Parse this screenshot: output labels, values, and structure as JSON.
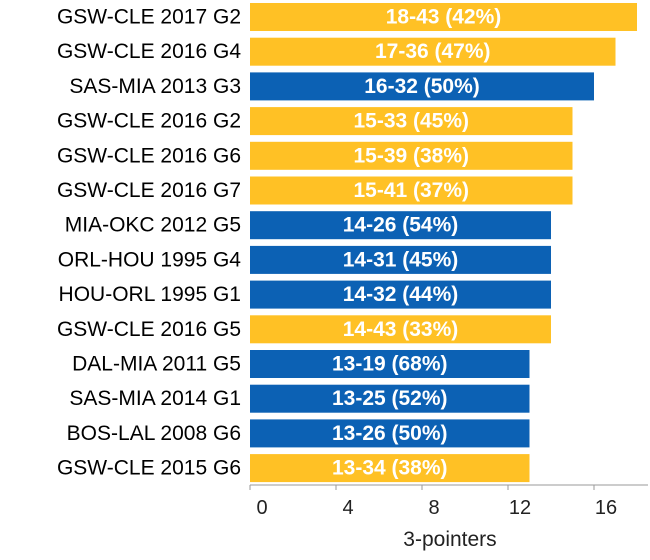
{
  "chart_data": {
    "type": "bar",
    "orientation": "horizontal",
    "xlabel": "3-pointers",
    "xlim": [
      0,
      18
    ],
    "xticks": [
      0,
      4,
      8,
      12,
      16
    ],
    "grid": false,
    "colors": {
      "gold": "#FFC125",
      "blue": "#0C61B4"
    },
    "bars": [
      {
        "category": "GSW-CLE 2017 G2",
        "value": 18,
        "label": "18-43 (42%)",
        "color": "gold"
      },
      {
        "category": "GSW-CLE 2016 G4",
        "value": 17,
        "label": "17-36 (47%)",
        "color": "gold"
      },
      {
        "category": "SAS-MIA 2013 G3",
        "value": 16,
        "label": "16-32 (50%)",
        "color": "blue"
      },
      {
        "category": "GSW-CLE 2016 G2",
        "value": 15,
        "label": "15-33 (45%)",
        "color": "gold"
      },
      {
        "category": "GSW-CLE 2016 G6",
        "value": 15,
        "label": "15-39 (38%)",
        "color": "gold"
      },
      {
        "category": "GSW-CLE 2016 G7",
        "value": 15,
        "label": "15-41 (37%)",
        "color": "gold"
      },
      {
        "category": "MIA-OKC 2012 G5",
        "value": 14,
        "label": "14-26 (54%)",
        "color": "blue"
      },
      {
        "category": "ORL-HOU 1995 G4",
        "value": 14,
        "label": "14-31 (45%)",
        "color": "blue"
      },
      {
        "category": "HOU-ORL 1995 G1",
        "value": 14,
        "label": "14-32 (44%)",
        "color": "blue"
      },
      {
        "category": "GSW-CLE 2016 G5",
        "value": 14,
        "label": "14-43 (33%)",
        "color": "gold"
      },
      {
        "category": "DAL-MIA 2011 G5",
        "value": 13,
        "label": "13-19 (68%)",
        "color": "blue"
      },
      {
        "category": "SAS-MIA 2014 G1",
        "value": 13,
        "label": "13-25 (52%)",
        "color": "blue"
      },
      {
        "category": "BOS-LAL 2008 G6",
        "value": 13,
        "label": "13-26 (50%)",
        "color": "blue"
      },
      {
        "category": "GSW-CLE 2015 G6",
        "value": 13,
        "label": "13-34 (38%)",
        "color": "gold"
      }
    ]
  }
}
